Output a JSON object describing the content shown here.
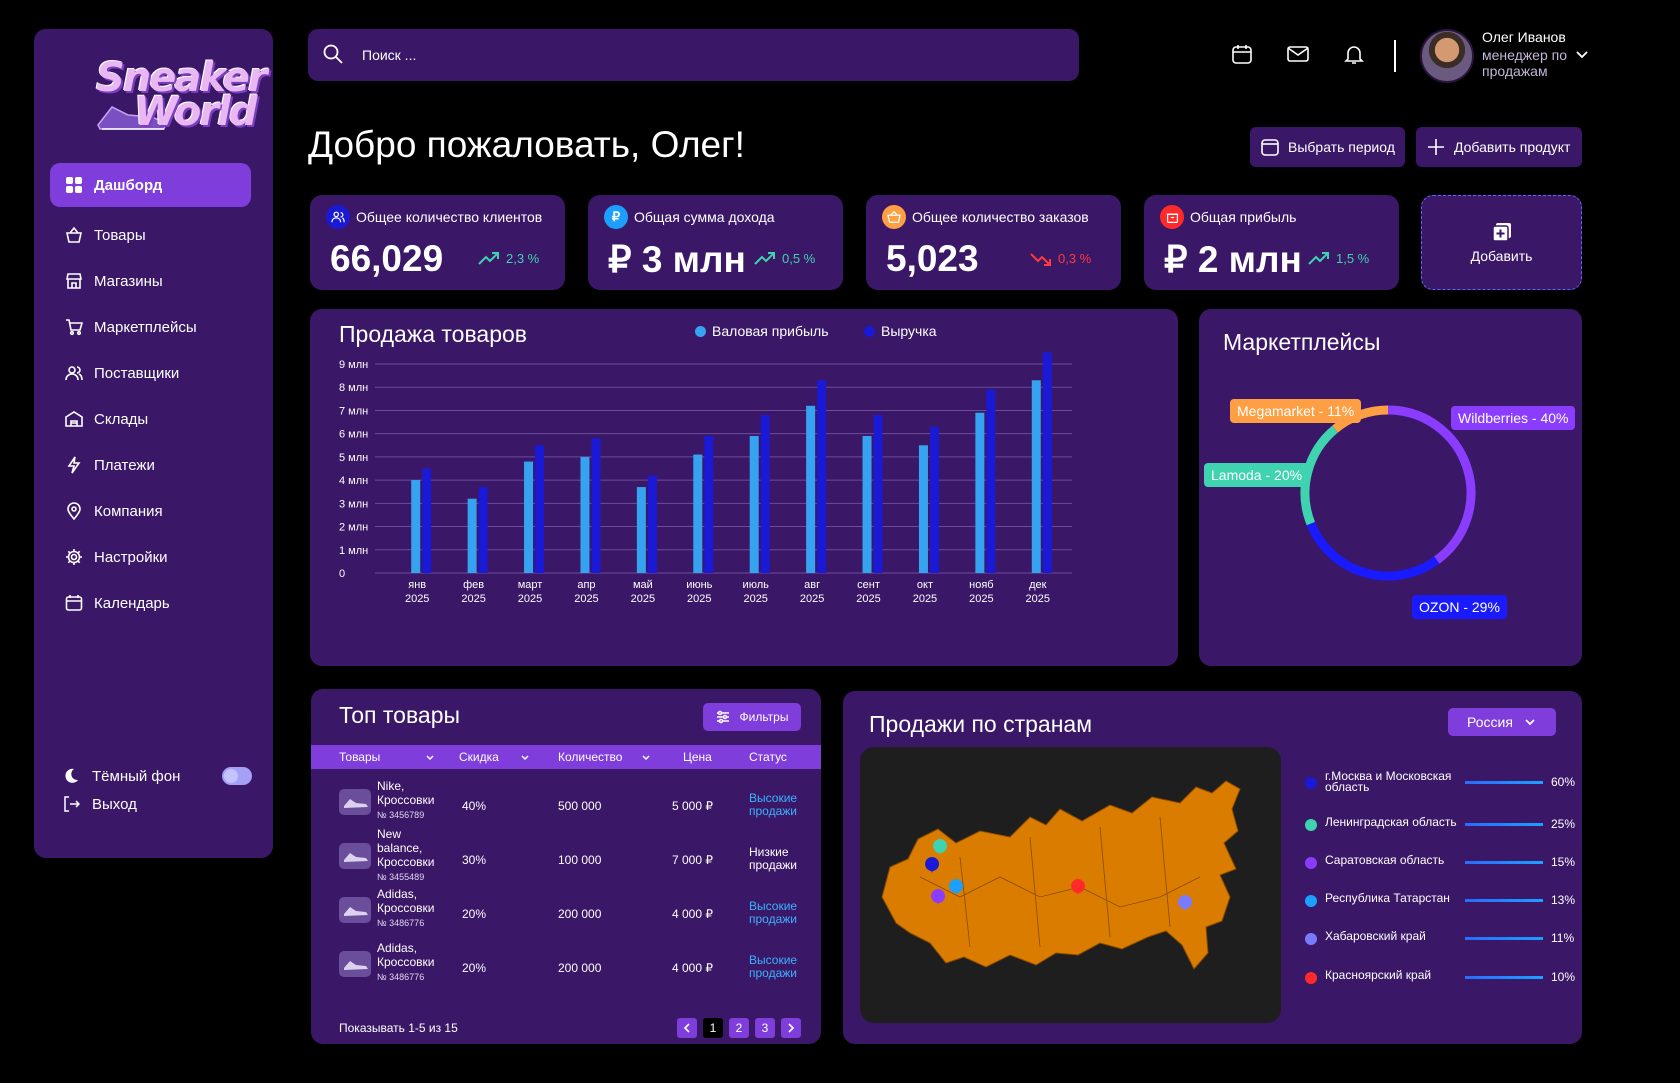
{
  "brand": {
    "line1": "Sneaker",
    "line2": "World"
  },
  "sidebar": {
    "items": [
      {
        "label": "Дашборд",
        "icon": "dashboard-icon",
        "active": true
      },
      {
        "label": "Товары",
        "icon": "basket-icon"
      },
      {
        "label": "Магазины",
        "icon": "store-icon"
      },
      {
        "label": "Маркетплейсы",
        "icon": "cart-icon"
      },
      {
        "label": "Поставщики",
        "icon": "users-icon"
      },
      {
        "label": "Склады",
        "icon": "warehouse-icon"
      },
      {
        "label": "Платежи",
        "icon": "lightning-icon"
      },
      {
        "label": "Компания",
        "icon": "location-icon"
      },
      {
        "label": "Настройки",
        "icon": "gear-icon"
      },
      {
        "label": "Календарь",
        "icon": "calendar-icon"
      }
    ],
    "dark_mode_label": "Тёмный фон",
    "dark_mode_on": true,
    "logout_label": "Выход"
  },
  "search": {
    "placeholder": "Поиск ..."
  },
  "user": {
    "name": "Олег Иванов",
    "role": "менеджер по продажам"
  },
  "welcome": "Добро пожаловать, Олег!",
  "actions": {
    "period": "Выбрать период",
    "add_product": "Добавить продукт"
  },
  "stats": [
    {
      "label": "Общее количество клиентов",
      "value": "66,029",
      "change": "2,3 %",
      "direction": "up",
      "color": "#3fd3b0"
    },
    {
      "label": "Общая сумма дохода",
      "value": "₽ 3 млн",
      "change": "0,5 %",
      "direction": "up",
      "color": "#3fd3b0"
    },
    {
      "label": "Общее количество заказов",
      "value": "5,023",
      "change": "0,3 %",
      "direction": "down",
      "color": "#ff3b3b"
    },
    {
      "label": "Общая прибыль",
      "value": "₽ 2 млн",
      "change": "1,5 %",
      "direction": "up",
      "color": "#3fd3b0"
    }
  ],
  "add_card_label": "Добавить",
  "sales_chart": {
    "title": "Продажа товаров",
    "legend": [
      {
        "name": "Валовая прибыль",
        "color": "#36a3f0"
      },
      {
        "name": "Выручка",
        "color": "#1a1ad6"
      }
    ]
  },
  "chart_data": [
    {
      "type": "bar",
      "title": "Продажа товаров",
      "categories": [
        "янв 2025",
        "фев 2025",
        "март 2025",
        "апр 2025",
        "май 2025",
        "июнь 2025",
        "июль 2025",
        "авг 2025",
        "сент 2025",
        "окт 2025",
        "нояб 2025",
        "дек 2025"
      ],
      "series": [
        {
          "name": "Валовая прибыль",
          "values": [
            4.0,
            3.2,
            4.8,
            5.0,
            3.7,
            5.1,
            5.9,
            7.2,
            5.9,
            5.5,
            6.9,
            8.3
          ]
        },
        {
          "name": "Выручка",
          "values": [
            4.5,
            3.7,
            5.5,
            5.8,
            4.2,
            5.9,
            6.8,
            8.3,
            6.8,
            6.3,
            7.9,
            9.5
          ]
        }
      ],
      "yticks": [
        "0",
        "1 млн",
        "2 млн",
        "3 млн",
        "4 млн",
        "5 млн",
        "6 млн",
        "7 млн",
        "8 млн",
        "9 млн"
      ],
      "ylim": [
        0,
        9.5
      ],
      "grid": true,
      "legend": "top"
    },
    {
      "type": "pie",
      "title": "Маркетплейсы",
      "categories": [
        "Wildberries",
        "OZON",
        "Lamoda",
        "Megamarket"
      ],
      "values": [
        40,
        29,
        20,
        11
      ],
      "labels": [
        "Wildberries - 40%",
        "OZON - 29%",
        "Lamoda - 20%",
        "Megamarket - 11%"
      ],
      "colors": [
        "#8b3dff",
        "#1a1aff",
        "#3fd3b0",
        "#ff9f43"
      ]
    }
  ],
  "top_products": {
    "title": "Топ товары",
    "filter_label": "Фильтры",
    "columns": [
      "Товары",
      "Скидка",
      "Количество",
      "Цена",
      "Статус"
    ],
    "rows": [
      {
        "name": "Nike,\nКроссовки",
        "code": "№ 3456789",
        "discount": "40%",
        "qty": "500 000",
        "price": "5 000 ₽",
        "status": "Высокие\nпродажи",
        "status_color": "#3ab4ff"
      },
      {
        "name": "New\nbalance,\nКроссовки",
        "code": "№ 3455489",
        "discount": "30%",
        "qty": "100 000",
        "price": "7 000 ₽",
        "status": "Низкие\nпродажи",
        "status_color": "#ffffff"
      },
      {
        "name": "Adidas,\nКроссовки",
        "code": "№ 3486776",
        "discount": "20%",
        "qty": "200 000",
        "price": "4 000 ₽",
        "status": "Высокие\nпродажи",
        "status_color": "#3ab4ff"
      },
      {
        "name": "Adidas,\nКроссовки",
        "code": "№ 3486776",
        "discount": "20%",
        "qty": "200 000",
        "price": "4 000 ₽",
        "status": "Высокие\nпродажи",
        "status_color": "#3ab4ff"
      }
    ],
    "footer": "Показывать 1-5 из 15",
    "pages": [
      "1",
      "2",
      "3"
    ],
    "current_page": "1"
  },
  "country_sales": {
    "title": "Продажи по странам",
    "country": "Россия",
    "regions": [
      {
        "name": "г.Москва и Московская область",
        "percent": "60%",
        "color": "#1a1ad6"
      },
      {
        "name": "Ленинградская область",
        "percent": "25%",
        "color": "#3fd3b0"
      },
      {
        "name": "Саратовская область",
        "percent": "15%",
        "color": "#8b3dff"
      },
      {
        "name": "Республика Татарстан",
        "percent": "13%",
        "color": "#1c9fff"
      },
      {
        "name": "Хабаровский край",
        "percent": "11%",
        "color": "#7a7aff"
      },
      {
        "name": "Красноярский край",
        "percent": "10%",
        "color": "#ff2a2a"
      }
    ]
  }
}
